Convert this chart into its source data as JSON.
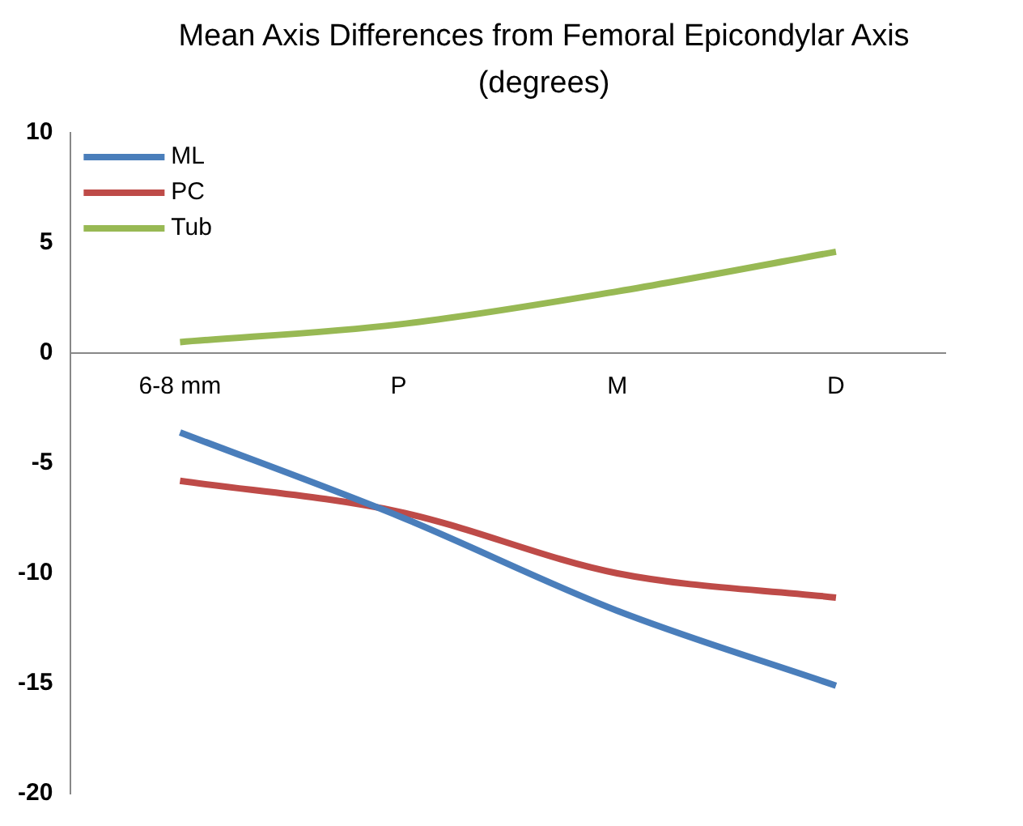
{
  "chart_data": {
    "type": "line",
    "title": "Mean Axis Differences from Femoral Epicondylar Axis (degrees)",
    "categories": [
      "6-8 mm",
      "P",
      "M",
      "D"
    ],
    "series": [
      {
        "name": "ML",
        "color": "#4a7ebb",
        "values": [
          -3.6,
          -7.4,
          -11.7,
          -15.1
        ]
      },
      {
        "name": "PC",
        "color": "#be4b48",
        "values": [
          -5.8,
          -7.2,
          -10.0,
          -11.1
        ]
      },
      {
        "name": "Tub",
        "color": "#98b954",
        "values": [
          0.5,
          1.3,
          2.8,
          4.6
        ]
      }
    ],
    "ylim": [
      -20,
      10
    ],
    "yticks": [
      -20,
      -15,
      -10,
      -5,
      0,
      5,
      10
    ],
    "grid": false,
    "legend": "top left",
    "marker": "none"
  }
}
